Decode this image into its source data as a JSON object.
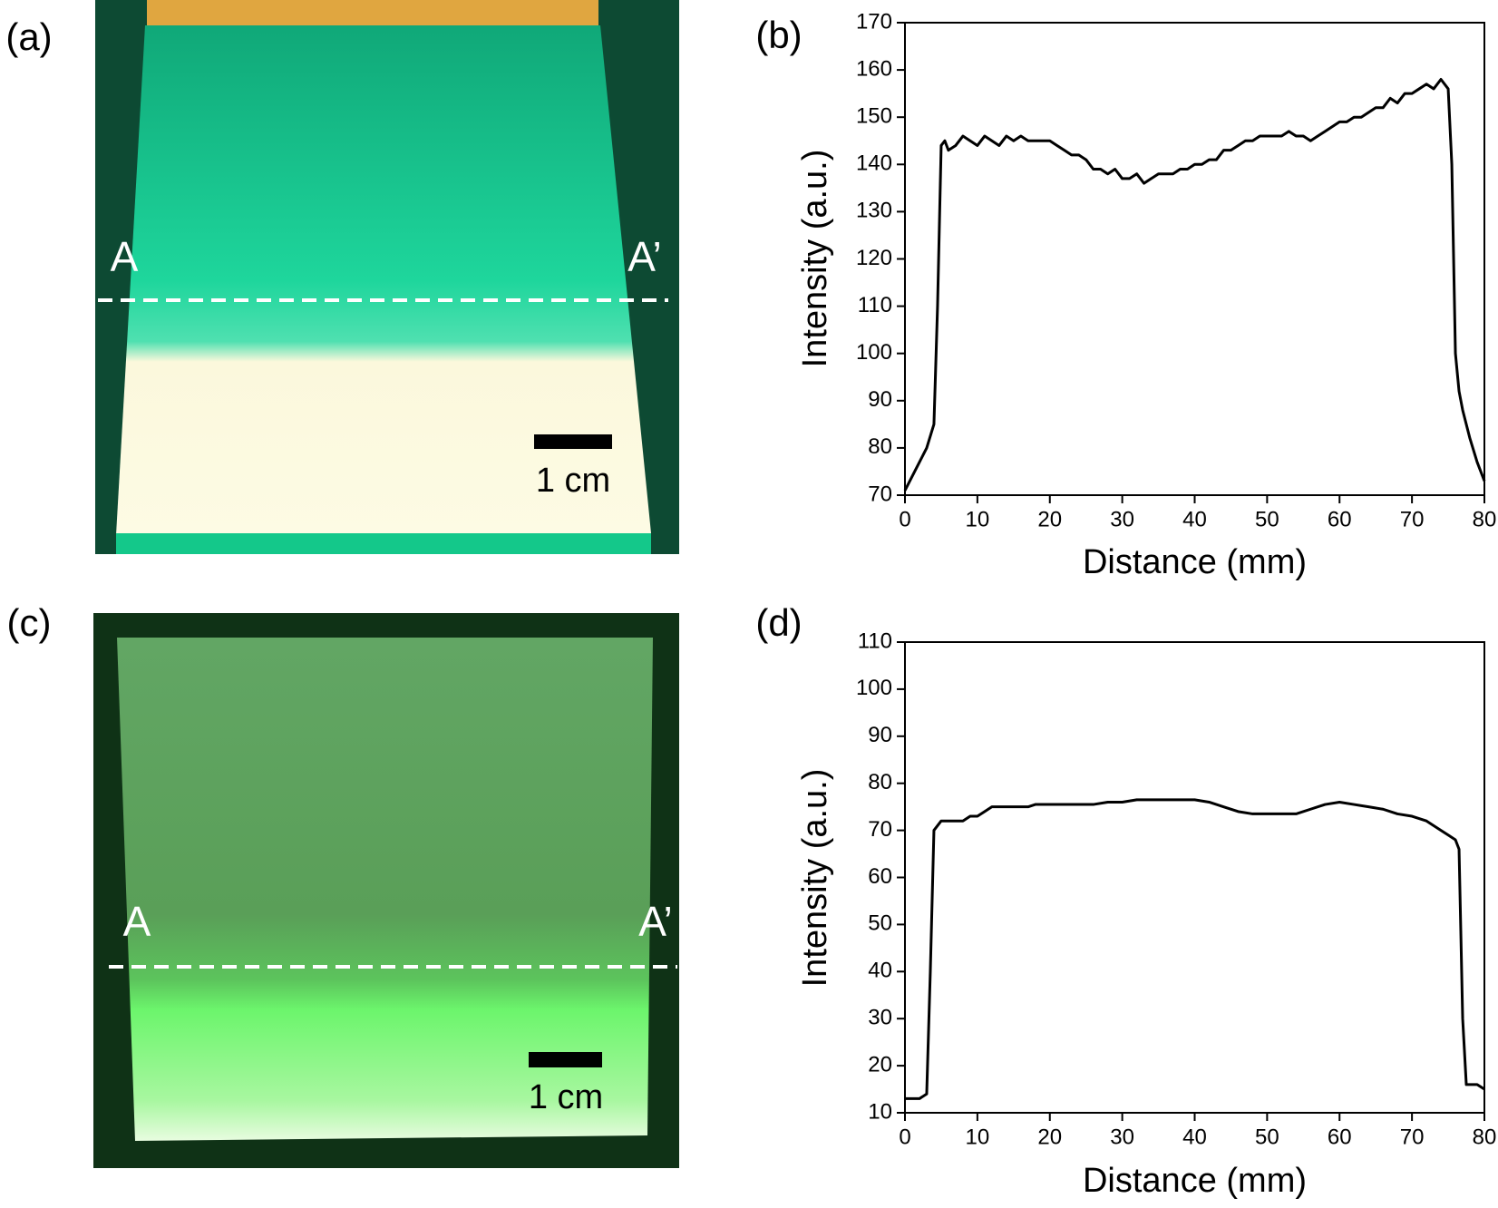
{
  "photos": [
    {
      "panel_label": "(a)",
      "start_label": "A",
      "end_label": "A’",
      "scale_bar": "1 cm"
    },
    {
      "panel_label": "(c)",
      "start_label": "A",
      "end_label": "A’",
      "scale_bar": "1 cm"
    }
  ],
  "chart_data": [
    {
      "type": "line",
      "panel_label": "(b)",
      "x_label": "Distance (mm)",
      "y_label": "Intensity (a.u.)",
      "color": "#000000",
      "xlim": [
        0,
        80
      ],
      "xticks": [
        0,
        10,
        20,
        30,
        40,
        50,
        60,
        70,
        80
      ],
      "ylim": [
        70,
        170
      ],
      "yticks": [
        70,
        80,
        90,
        100,
        110,
        120,
        130,
        140,
        150,
        160,
        170
      ],
      "x": [
        0,
        1,
        2,
        3,
        4,
        4.5,
        5,
        5.5,
        6,
        7,
        8,
        9,
        10,
        11,
        12,
        13,
        14,
        15,
        16,
        17,
        18,
        19,
        20,
        21,
        22,
        23,
        24,
        25,
        26,
        27,
        28,
        29,
        30,
        31,
        32,
        33,
        34,
        35,
        36,
        37,
        38,
        39,
        40,
        41,
        42,
        43,
        44,
        45,
        46,
        47,
        48,
        49,
        50,
        51,
        52,
        53,
        54,
        55,
        56,
        57,
        58,
        59,
        60,
        61,
        62,
        63,
        64,
        65,
        66,
        67,
        68,
        69,
        70,
        71,
        72,
        73,
        74,
        75,
        75.5,
        76,
        76.5,
        77,
        78,
        79,
        80
      ],
      "values": [
        71,
        74,
        77,
        80,
        85,
        110,
        144,
        145,
        143,
        144,
        146,
        145,
        144,
        146,
        145,
        144,
        146,
        145,
        146,
        145,
        145,
        145,
        145,
        144,
        143,
        142,
        142,
        141,
        139,
        139,
        138,
        139,
        137,
        137,
        138,
        136,
        137,
        138,
        138,
        138,
        139,
        139,
        140,
        140,
        141,
        141,
        143,
        143,
        144,
        145,
        145,
        146,
        146,
        146,
        146,
        147,
        146,
        146,
        145,
        146,
        147,
        148,
        149,
        149,
        150,
        150,
        151,
        152,
        152,
        154,
        153,
        155,
        155,
        156,
        157,
        156,
        158,
        156,
        140,
        100,
        92,
        88,
        82,
        77,
        73
      ]
    },
    {
      "type": "line",
      "panel_label": "(d)",
      "x_label": "Distance (mm)",
      "y_label": "Intensity (a.u.)",
      "color": "#000000",
      "xlim": [
        0,
        80
      ],
      "xticks": [
        0,
        10,
        20,
        30,
        40,
        50,
        60,
        70,
        80
      ],
      "ylim": [
        10,
        110
      ],
      "yticks": [
        10,
        20,
        30,
        40,
        50,
        60,
        70,
        80,
        90,
        100,
        110
      ],
      "x": [
        0,
        1,
        2,
        3,
        3.5,
        4,
        5,
        6,
        7,
        8,
        9,
        10,
        11,
        12,
        13,
        14,
        15,
        16,
        17,
        18,
        19,
        20,
        22,
        24,
        26,
        28,
        30,
        32,
        34,
        36,
        38,
        40,
        42,
        44,
        46,
        48,
        50,
        52,
        54,
        56,
        58,
        60,
        62,
        64,
        66,
        68,
        70,
        72,
        74,
        75,
        76,
        76.5,
        77,
        77.5,
        78,
        79,
        80
      ],
      "values": [
        13,
        13,
        13,
        14,
        40,
        70,
        72,
        72,
        72,
        72,
        73,
        73,
        74,
        75,
        75,
        75,
        75,
        75,
        75,
        75.5,
        75.5,
        75.5,
        75.5,
        75.5,
        75.5,
        76,
        76,
        76.5,
        76.5,
        76.5,
        76.5,
        76.5,
        76,
        75,
        74,
        73.5,
        73.5,
        73.5,
        73.5,
        74.5,
        75.5,
        76,
        75.5,
        75,
        74.5,
        73.5,
        73,
        72,
        70,
        69,
        68,
        66,
        30,
        16,
        16,
        16,
        15
      ]
    }
  ]
}
